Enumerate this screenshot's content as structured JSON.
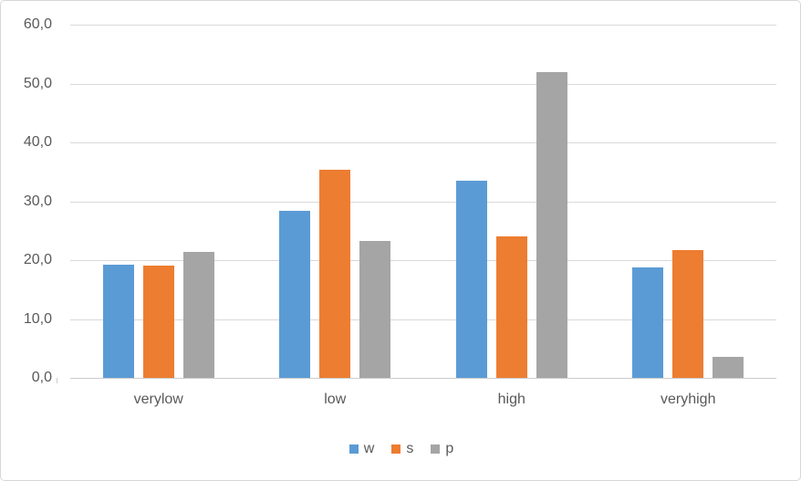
{
  "chart_data": {
    "type": "bar",
    "title": "",
    "xlabel": "",
    "ylabel": "",
    "categories": [
      "verylow",
      "low",
      "high",
      "veryhigh"
    ],
    "series": [
      {
        "name": "w",
        "color": "#5b9bd5",
        "values": [
          19.3,
          28.4,
          33.5,
          18.8
        ]
      },
      {
        "name": "s",
        "color": "#ed7d31",
        "values": [
          19.0,
          35.3,
          24.0,
          21.7
        ]
      },
      {
        "name": "p",
        "color": "#a5a5a5",
        "values": [
          21.4,
          23.2,
          51.9,
          3.5
        ]
      }
    ],
    "ylim": [
      0,
      60
    ],
    "ytick_step": 10,
    "ytick_labels": [
      "0,0",
      "10,0",
      "20,0",
      "30,0",
      "40,0",
      "50,0",
      "60,0"
    ],
    "decimal_separator": ",",
    "grid": true,
    "legend_position": "bottom",
    "legend_entries": [
      "w",
      "s",
      "p"
    ]
  },
  "colors": {
    "background": "#ffffff",
    "frame_border": "#d7d7d7",
    "gridline": "#d9d9d9",
    "axis_line": "#cccccc",
    "axis_text": "#595959"
  }
}
